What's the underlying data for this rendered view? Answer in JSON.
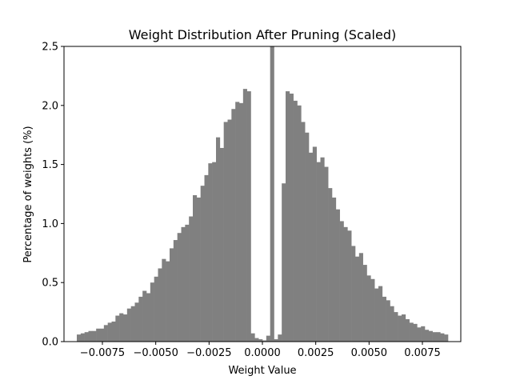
{
  "chart_data": {
    "type": "bar",
    "title": "Weight Distribution After Pruning (Scaled)",
    "xlabel": "Weight Value",
    "ylabel": "Percentage of weights (%)",
    "xlim": [
      -0.0093,
      0.0093
    ],
    "ylim": [
      0,
      2.5
    ],
    "xticks": [
      -0.0075,
      -0.005,
      -0.0025,
      0.0,
      0.0025,
      0.005,
      0.0075
    ],
    "xtick_labels": [
      "−0.0075",
      "−0.0050",
      "−0.0025",
      "0.0000",
      "0.0025",
      "0.0050",
      "0.0075"
    ],
    "yticks": [
      0.0,
      0.5,
      1.0,
      1.5,
      2.0,
      2.5
    ],
    "ytick_labels": [
      "0.0",
      "0.5",
      "1.0",
      "1.5",
      "2.0",
      "2.5"
    ],
    "bar_color": "#808080",
    "grid": false,
    "bin_start": -0.0087,
    "bin_end": 0.0087,
    "values": [
      0.06,
      0.07,
      0.08,
      0.09,
      0.09,
      0.11,
      0.11,
      0.14,
      0.16,
      0.17,
      0.22,
      0.24,
      0.23,
      0.28,
      0.3,
      0.33,
      0.38,
      0.43,
      0.41,
      0.5,
      0.55,
      0.62,
      0.7,
      0.68,
      0.79,
      0.86,
      0.92,
      0.97,
      0.99,
      1.06,
      1.24,
      1.22,
      1.32,
      1.41,
      1.51,
      1.52,
      1.73,
      1.64,
      1.86,
      1.88,
      1.97,
      2.03,
      2.02,
      2.14,
      2.12,
      0.07,
      0.03,
      0.02,
      0.01,
      0.05,
      2.5,
      0.02,
      0.06,
      1.34,
      2.12,
      2.1,
      2.04,
      2.0,
      1.86,
      1.77,
      1.6,
      1.65,
      1.52,
      1.56,
      1.48,
      1.3,
      1.22,
      1.12,
      1.02,
      0.97,
      0.94,
      0.81,
      0.72,
      0.75,
      0.65,
      0.56,
      0.53,
      0.45,
      0.47,
      0.38,
      0.35,
      0.3,
      0.25,
      0.22,
      0.23,
      0.19,
      0.16,
      0.15,
      0.12,
      0.13,
      0.1,
      0.09,
      0.08,
      0.08,
      0.07,
      0.06
    ]
  }
}
